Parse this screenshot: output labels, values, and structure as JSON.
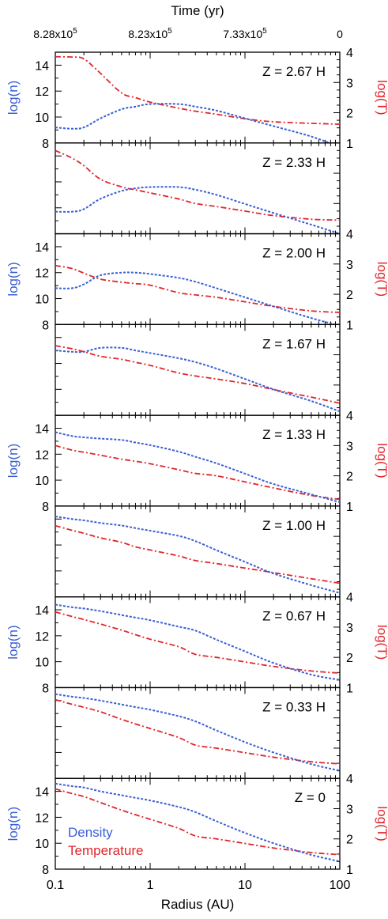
{
  "chart_data": {
    "type": "line",
    "title": "",
    "x_top": {
      "label": "Time (yr)",
      "tick_labels": [
        {
          "mantissa": "8.28x10",
          "exp": "5",
          "at_radius": 0.1
        },
        {
          "mantissa": "8.23x10",
          "exp": "5",
          "at_radius": 1
        },
        {
          "mantissa": "7.33x10",
          "exp": "5",
          "at_radius": 10
        },
        {
          "mantissa": "0",
          "exp": "",
          "at_radius": 100
        }
      ]
    },
    "x_bottom": {
      "label": "Radius (AU)",
      "scale": "log",
      "range": [
        0.1,
        100
      ],
      "tick_labels": [
        "0.1",
        "1",
        "10",
        "100"
      ]
    },
    "y_left": {
      "label": "log(n)",
      "range": [
        8,
        15
      ],
      "tick_labels": [
        "8",
        "10",
        "12",
        "14"
      ]
    },
    "y_right": {
      "label": "log(T)",
      "range": [
        1,
        4
      ],
      "tick_labels": [
        "1",
        "2",
        "3",
        "4"
      ]
    },
    "legend": {
      "placement": "bottom-left",
      "entries": [
        "Density",
        "Temperature"
      ]
    },
    "colors": {
      "density": "#3a5fd4",
      "temperature": "#e0262b"
    },
    "series_x": [
      0.1,
      0.15,
      0.2,
      0.3,
      0.5,
      0.7,
      1,
      2,
      3,
      5,
      10,
      20,
      50,
      100
    ],
    "panels": [
      {
        "label": "Z = 2.67 H",
        "density": [
          9.2,
          9.1,
          9.2,
          9.9,
          10.6,
          10.8,
          11.0,
          11.0,
          10.8,
          10.5,
          9.9,
          9.3,
          8.5,
          7.7
        ],
        "temperature": [
          3.85,
          3.84,
          3.78,
          3.3,
          2.65,
          2.5,
          2.35,
          2.15,
          2.05,
          1.95,
          1.8,
          1.7,
          1.65,
          1.62
        ]
      },
      {
        "label": "Z = 2.33 H",
        "density": [
          9.7,
          9.7,
          9.9,
          10.7,
          11.3,
          11.5,
          11.6,
          11.6,
          11.4,
          11.0,
          10.3,
          9.6,
          8.7,
          8.0
        ],
        "temperature": [
          3.75,
          3.5,
          3.25,
          2.8,
          2.55,
          2.45,
          2.35,
          2.15,
          2.0,
          1.9,
          1.75,
          1.6,
          1.48,
          1.45
        ]
      },
      {
        "label": "Z = 2.00 H",
        "density": [
          10.8,
          10.8,
          11.1,
          11.8,
          12.0,
          12.0,
          11.9,
          11.6,
          11.3,
          10.8,
          10.1,
          9.4,
          8.5,
          7.9
        ],
        "temperature": [
          2.95,
          2.85,
          2.7,
          2.5,
          2.4,
          2.35,
          2.3,
          2.05,
          1.98,
          1.9,
          1.75,
          1.6,
          1.45,
          1.4
        ]
      },
      {
        "label": "Z = 1.67 H",
        "density": [
          13.0,
          12.9,
          12.9,
          13.2,
          13.2,
          13.0,
          12.8,
          12.4,
          12.1,
          11.6,
          10.8,
          10.0,
          9.1,
          8.3
        ],
        "temperature": [
          3.3,
          3.2,
          3.1,
          2.95,
          2.85,
          2.75,
          2.65,
          2.4,
          2.3,
          2.2,
          2.05,
          1.85,
          1.6,
          1.4
        ]
      },
      {
        "label": "Z = 1.33 H",
        "density": [
          13.7,
          13.4,
          13.3,
          13.2,
          13.1,
          12.9,
          12.7,
          12.2,
          11.8,
          11.3,
          10.5,
          9.7,
          8.9,
          8.3
        ],
        "temperature": [
          3.0,
          2.85,
          2.78,
          2.68,
          2.55,
          2.48,
          2.4,
          2.2,
          2.08,
          2.0,
          1.8,
          1.6,
          1.35,
          1.22
        ]
      },
      {
        "label": "Z = 1.00 H",
        "density": [
          14.2,
          14.0,
          13.9,
          13.7,
          13.5,
          13.3,
          13.1,
          12.7,
          12.3,
          11.6,
          10.7,
          9.8,
          8.9,
          8.3
        ],
        "temperature": [
          3.35,
          3.2,
          3.1,
          2.95,
          2.8,
          2.65,
          2.55,
          2.35,
          2.2,
          2.1,
          1.95,
          1.8,
          1.6,
          1.45
        ]
      },
      {
        "label": "Z = 0.67 H",
        "density": [
          14.4,
          14.2,
          14.1,
          13.9,
          13.6,
          13.4,
          13.2,
          12.7,
          12.4,
          11.7,
          10.8,
          9.9,
          9.0,
          8.6
        ],
        "temperature": [
          3.5,
          3.35,
          3.25,
          3.1,
          2.9,
          2.75,
          2.6,
          2.35,
          2.1,
          2.0,
          1.85,
          1.7,
          1.55,
          1.48
        ]
      },
      {
        "label": "Z = 0.33 H",
        "density": [
          14.5,
          14.3,
          14.2,
          14.0,
          13.7,
          13.5,
          13.3,
          12.8,
          12.4,
          11.7,
          10.8,
          10.0,
          9.1,
          8.6
        ],
        "temperature": [
          3.6,
          3.45,
          3.35,
          3.2,
          2.95,
          2.8,
          2.65,
          2.35,
          2.1,
          2.0,
          1.85,
          1.7,
          1.55,
          1.48
        ]
      },
      {
        "label": "Z = 0",
        "density": [
          14.6,
          14.4,
          14.3,
          14.0,
          13.7,
          13.5,
          13.3,
          12.8,
          12.4,
          11.7,
          10.8,
          10.0,
          9.1,
          8.6
        ],
        "temperature": [
          3.65,
          3.5,
          3.4,
          3.2,
          2.95,
          2.8,
          2.65,
          2.35,
          2.1,
          2.0,
          1.85,
          1.7,
          1.55,
          1.48
        ]
      }
    ]
  }
}
